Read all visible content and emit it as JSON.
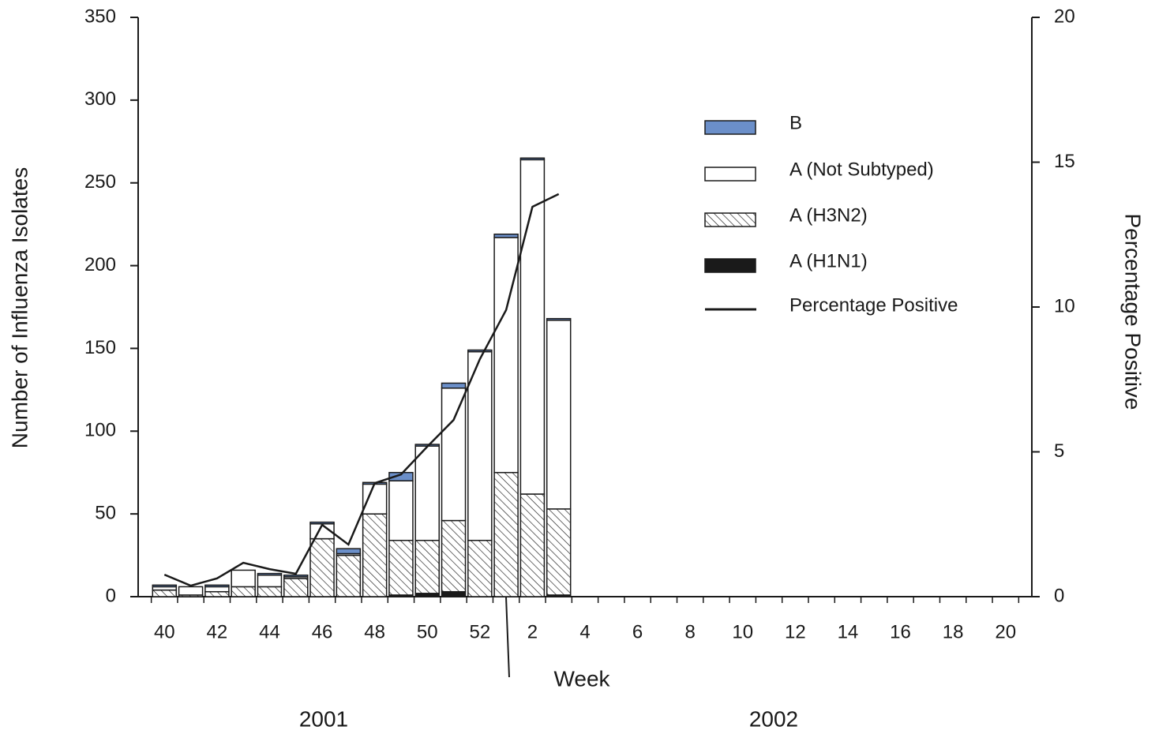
{
  "chart_data": {
    "type": "bar",
    "stacked": true,
    "x_label": "Week",
    "y_label": "Number of Influenza Isolates",
    "y2_label": "Percentage Positive",
    "year_labels": [
      "2001",
      "2002"
    ],
    "categories": [
      40,
      null,
      42,
      null,
      44,
      null,
      46,
      null,
      48,
      null,
      50,
      null,
      52,
      null,
      2,
      null,
      4,
      null,
      6,
      null,
      8,
      null,
      10,
      null,
      12,
      null,
      14,
      null,
      16,
      null,
      18,
      null,
      20
    ],
    "series": [
      {
        "name": "B",
        "type": "bar",
        "color": "#6b8fc9",
        "values": [
          1,
          0,
          1,
          0,
          1,
          1,
          1,
          3,
          1,
          5,
          1,
          3,
          1,
          2,
          1,
          1,
          null,
          null,
          null,
          null,
          null,
          null,
          null,
          null,
          null,
          null,
          null,
          null,
          null,
          null,
          null,
          null,
          null
        ]
      },
      {
        "name": "A (Not Subtyped)",
        "type": "bar",
        "color": "#ffffff",
        "values": [
          2,
          5,
          3,
          10,
          7,
          1,
          9,
          1,
          18,
          36,
          57,
          80,
          114,
          142,
          202,
          114,
          null,
          null,
          null,
          null,
          null,
          null,
          null,
          null,
          null,
          null,
          null,
          null,
          null,
          null,
          null,
          null,
          null
        ]
      },
      {
        "name": "A (H3N2)",
        "type": "bar",
        "color": "#ffffff",
        "pattern": "hatch",
        "values": [
          4,
          1,
          3,
          6,
          6,
          11,
          35,
          25,
          50,
          33,
          32,
          43,
          34,
          75,
          62,
          52,
          null,
          null,
          null,
          null,
          null,
          null,
          null,
          null,
          null,
          null,
          null,
          null,
          null,
          null,
          null,
          null,
          null
        ]
      },
      {
        "name": "A (H1N1)",
        "type": "bar",
        "color": "#1a1a1a",
        "values": [
          0,
          0,
          0,
          0,
          0,
          0,
          0,
          0,
          0,
          1,
          2,
          3,
          0,
          0,
          0,
          1,
          null,
          null,
          null,
          null,
          null,
          null,
          null,
          null,
          null,
          null,
          null,
          null,
          null,
          null,
          null,
          null,
          null
        ]
      },
      {
        "name": "Percentage Positive",
        "type": "line",
        "axis": "y2",
        "color": "#1a1a1a",
        "values": [
          0.76,
          0.38,
          0.63,
          1.17,
          0.95,
          0.79,
          2.48,
          1.8,
          3.92,
          4.22,
          5.18,
          6.1,
          8.2,
          9.9,
          13.46,
          13.9,
          null,
          null,
          null,
          null,
          null,
          null,
          null,
          null,
          null,
          null,
          null,
          null,
          null,
          null,
          null,
          null,
          null
        ]
      }
    ],
    "ylim": [
      0,
      350
    ],
    "yticks": [
      0,
      50,
      100,
      150,
      200,
      250,
      300,
      350
    ],
    "y2lim": [
      0,
      20
    ],
    "y2ticks": [
      0,
      5,
      10,
      15,
      20
    ],
    "legend": "upper right"
  }
}
